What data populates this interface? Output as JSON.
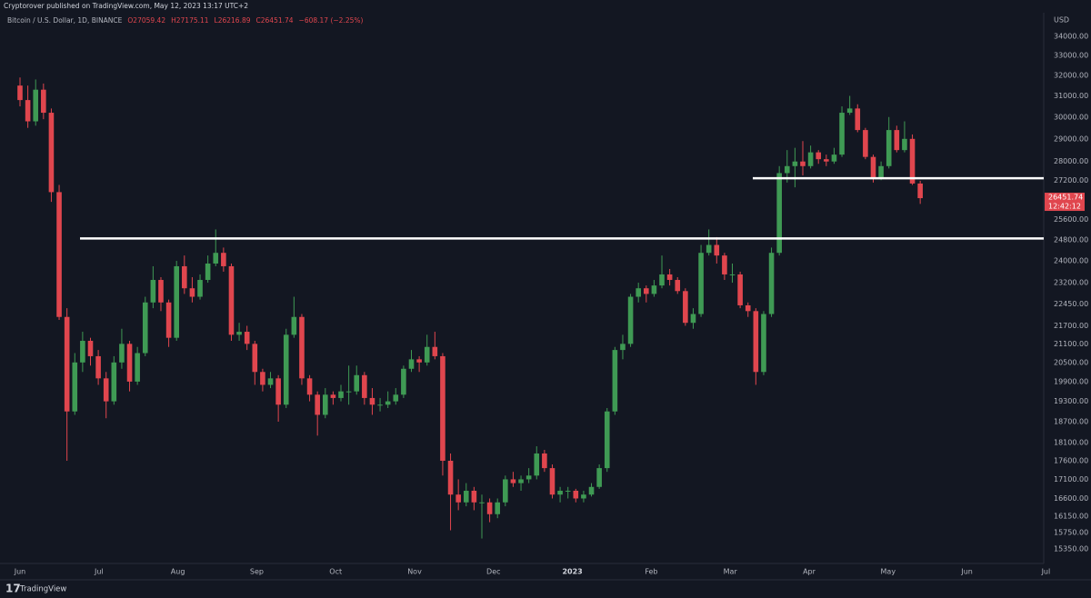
{
  "header": {
    "credit": "Cryptorover published on TradingView.com, May 12, 2023 13:17 UTC+2",
    "brand": "TradingView"
  },
  "chart_data": {
    "type": "candlestick",
    "log_scale": true,
    "symbol": "Bitcoin / U.S. Dollar, 1D, BINANCE",
    "ohlc_labels": [
      "O27059.42",
      "H27175.11",
      "L26216.89",
      "C26451.74",
      "−608.17 (−2.25%)"
    ],
    "currency": "USD",
    "last_price_label": "26451.74",
    "countdown": "12:42:12",
    "up_color": "#3f9a54",
    "down_color": "#e0464e",
    "level_color": "#ffffff",
    "ylim": [
      15350,
      34000
    ],
    "yticks": [
      {
        "value": 34000,
        "label": "34000.00"
      },
      {
        "value": 33000,
        "label": "33000.00"
      },
      {
        "value": 32000,
        "label": "32000.00"
      },
      {
        "value": 31000,
        "label": "31000.00"
      },
      {
        "value": 30000,
        "label": "30000.00"
      },
      {
        "value": 29000,
        "label": "29000.00"
      },
      {
        "value": 28000,
        "label": "28000.00"
      },
      {
        "value": 27200,
        "label": "27200.00"
      },
      {
        "value": 25600,
        "label": "25600.00"
      },
      {
        "value": 24800,
        "label": "24800.00"
      },
      {
        "value": 24000,
        "label": "24000.00"
      },
      {
        "value": 23200,
        "label": "23200.00"
      },
      {
        "value": 22450,
        "label": "22450.00"
      },
      {
        "value": 21700,
        "label": "21700.00"
      },
      {
        "value": 21100,
        "label": "21100.00"
      },
      {
        "value": 20500,
        "label": "20500.00"
      },
      {
        "value": 19900,
        "label": "19900.00"
      },
      {
        "value": 19300,
        "label": "19300.00"
      },
      {
        "value": 18700,
        "label": "18700.00"
      },
      {
        "value": 18100,
        "label": "18100.00"
      },
      {
        "value": 17600,
        "label": "17600.00"
      },
      {
        "value": 17100,
        "label": "17100.00"
      },
      {
        "value": 16600,
        "label": "16600.00"
      },
      {
        "value": 16150,
        "label": "16150.00"
      },
      {
        "value": 15750,
        "label": "15750.00"
      },
      {
        "value": 15350,
        "label": "15350.00"
      }
    ],
    "xticks": [
      "Jun",
      "Jul",
      "Aug",
      "Sep",
      "Oct",
      "Nov",
      "Dec",
      "2023",
      "Feb",
      "Mar",
      "Apr",
      "May",
      "Jun",
      "Jul"
    ],
    "levels": [
      24850,
      27280
    ],
    "candles": [
      [
        31500,
        31900,
        30500,
        30800
      ],
      [
        30800,
        31500,
        29500,
        29800
      ],
      [
        29800,
        31800,
        29600,
        31300
      ],
      [
        31300,
        31600,
        29900,
        30200
      ],
      [
        30200,
        30400,
        26300,
        26700
      ],
      [
        26700,
        27000,
        21900,
        22000
      ],
      [
        22000,
        22300,
        17600,
        19000
      ],
      [
        19000,
        20800,
        18900,
        20500
      ],
      [
        20500,
        21500,
        20200,
        21200
      ],
      [
        21200,
        21300,
        20400,
        20700
      ],
      [
        20700,
        20900,
        19800,
        20000
      ],
      [
        20000,
        20200,
        18800,
        19300
      ],
      [
        19300,
        20700,
        19200,
        20500
      ],
      [
        20500,
        21600,
        20300,
        21100
      ],
      [
        21100,
        21200,
        19600,
        19900
      ],
      [
        19900,
        21000,
        19800,
        20800
      ],
      [
        20800,
        22700,
        20700,
        22500
      ],
      [
        22500,
        23800,
        22300,
        23300
      ],
      [
        23300,
        23400,
        22200,
        22500
      ],
      [
        22500,
        22600,
        21000,
        21300
      ],
      [
        21300,
        24000,
        21200,
        23800
      ],
      [
        23800,
        24200,
        22800,
        23000
      ],
      [
        23000,
        23400,
        22500,
        22700
      ],
      [
        22700,
        23500,
        22600,
        23300
      ],
      [
        23300,
        24200,
        23200,
        23900
      ],
      [
        23900,
        25200,
        23800,
        24300
      ],
      [
        24300,
        24500,
        23600,
        23800
      ],
      [
        23800,
        23900,
        21200,
        21400
      ],
      [
        21400,
        21800,
        21200,
        21500
      ],
      [
        21500,
        21700,
        20900,
        21100
      ],
      [
        21100,
        21200,
        19800,
        20200
      ],
      [
        20200,
        20300,
        19600,
        19800
      ],
      [
        19800,
        20200,
        19700,
        20000
      ],
      [
        20000,
        20100,
        18700,
        19200
      ],
      [
        19200,
        21600,
        19100,
        21400
      ],
      [
        21400,
        22700,
        21300,
        22000
      ],
      [
        22000,
        22100,
        19800,
        20000
      ],
      [
        20000,
        20100,
        19300,
        19500
      ],
      [
        19500,
        19600,
        18300,
        18900
      ],
      [
        18900,
        19700,
        18800,
        19500
      ],
      [
        19500,
        19600,
        19200,
        19400
      ],
      [
        19400,
        19800,
        19300,
        19600
      ],
      [
        19600,
        20400,
        19200,
        19600
      ],
      [
        19600,
        20400,
        19500,
        20100
      ],
      [
        20100,
        20200,
        19200,
        19400
      ],
      [
        19400,
        19700,
        18900,
        19200
      ],
      [
        19200,
        19400,
        19000,
        19200
      ],
      [
        19200,
        19600,
        19100,
        19300
      ],
      [
        19300,
        19700,
        19200,
        19500
      ],
      [
        19500,
        20400,
        19400,
        20300
      ],
      [
        20300,
        20900,
        20200,
        20600
      ],
      [
        20600,
        20700,
        20200,
        20500
      ],
      [
        20500,
        21400,
        20400,
        21000
      ],
      [
        21000,
        21500,
        20600,
        20700
      ],
      [
        20700,
        20800,
        17200,
        17600
      ],
      [
        17600,
        17800,
        15800,
        16700
      ],
      [
        16700,
        17100,
        16300,
        16500
      ],
      [
        16500,
        17000,
        16400,
        16800
      ],
      [
        16800,
        16900,
        16300,
        16500
      ],
      [
        16500,
        16700,
        15600,
        16500
      ],
      [
        16500,
        16600,
        16000,
        16200
      ],
      [
        16200,
        16600,
        16100,
        16500
      ],
      [
        16500,
        17200,
        16400,
        17100
      ],
      [
        17100,
        17300,
        16900,
        17000
      ],
      [
        17000,
        17200,
        16800,
        17100
      ],
      [
        17100,
        17400,
        17000,
        17200
      ],
      [
        17200,
        18000,
        17100,
        17800
      ],
      [
        17800,
        17900,
        17300,
        17400
      ],
      [
        17400,
        17500,
        16600,
        16700
      ],
      [
        16700,
        16900,
        16500,
        16800
      ],
      [
        16800,
        16900,
        16600,
        16800
      ],
      [
        16800,
        16850,
        16500,
        16600
      ],
      [
        16600,
        16800,
        16500,
        16700
      ],
      [
        16700,
        17000,
        16650,
        16900
      ],
      [
        16900,
        17500,
        16850,
        17400
      ],
      [
        17400,
        19100,
        17300,
        19000
      ],
      [
        19000,
        21000,
        18900,
        20900
      ],
      [
        20900,
        21400,
        20600,
        21100
      ],
      [
        21100,
        22800,
        21000,
        22700
      ],
      [
        22700,
        23200,
        22500,
        23000
      ],
      [
        23000,
        23100,
        22500,
        22800
      ],
      [
        22800,
        23300,
        22700,
        23100
      ],
      [
        23100,
        24200,
        23000,
        23500
      ],
      [
        23500,
        23700,
        23100,
        23300
      ],
      [
        23300,
        23400,
        22800,
        22900
      ],
      [
        22900,
        23000,
        21700,
        21800
      ],
      [
        21800,
        22300,
        21600,
        22100
      ],
      [
        22100,
        24600,
        22000,
        24300
      ],
      [
        24300,
        25200,
        24200,
        24600
      ],
      [
        24600,
        24900,
        23900,
        24200
      ],
      [
        24200,
        24300,
        23300,
        23500
      ],
      [
        23500,
        23900,
        23200,
        23500
      ],
      [
        23500,
        23600,
        22300,
        22400
      ],
      [
        22400,
        22500,
        22000,
        22200
      ],
      [
        22200,
        22300,
        19800,
        20200
      ],
      [
        20200,
        22200,
        20100,
        22100
      ],
      [
        22100,
        24500,
        22000,
        24300
      ],
      [
        24300,
        27800,
        24200,
        27500
      ],
      [
        27500,
        28500,
        27100,
        27800
      ],
      [
        27800,
        28600,
        26900,
        28000
      ],
      [
        28000,
        28900,
        27400,
        27800
      ],
      [
        27800,
        28700,
        27700,
        28400
      ],
      [
        28400,
        28500,
        27900,
        28100
      ],
      [
        28100,
        28300,
        27800,
        28000
      ],
      [
        28000,
        28600,
        27900,
        28300
      ],
      [
        28300,
        30500,
        28200,
        30200
      ],
      [
        30200,
        31000,
        30100,
        30400
      ],
      [
        30400,
        30600,
        29300,
        29400
      ],
      [
        29400,
        29500,
        28100,
        28200
      ],
      [
        28200,
        28300,
        27100,
        27300
      ],
      [
        27300,
        28000,
        27200,
        27800
      ],
      [
        27800,
        30000,
        27700,
        29400
      ],
      [
        29400,
        29600,
        28400,
        28500
      ],
      [
        28500,
        29800,
        28400,
        29000
      ],
      [
        29000,
        29200,
        27000,
        27059.42
      ],
      [
        27059.42,
        27175.11,
        26216.89,
        26451.74
      ]
    ]
  }
}
